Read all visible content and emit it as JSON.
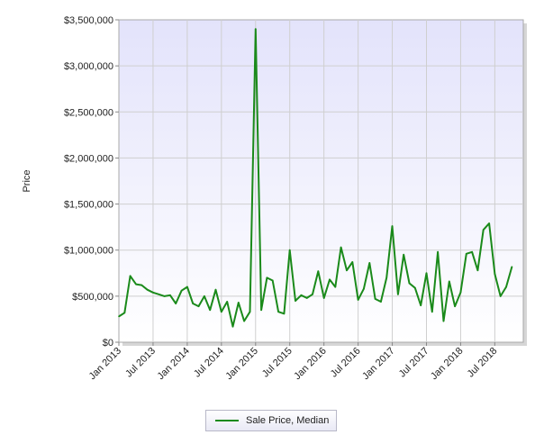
{
  "chart_data": {
    "type": "line",
    "title": "",
    "xlabel": "",
    "ylabel": "Price",
    "ylim": [
      0,
      3500000
    ],
    "yticks": [
      0,
      500000,
      1000000,
      1500000,
      2000000,
      2500000,
      3000000,
      3500000
    ],
    "ytick_labels": [
      "$0",
      "$500,000",
      "$1,000,000",
      "$1,500,000",
      "$2,000,000",
      "$2,500,000",
      "$3,000,000",
      "$3,500,000"
    ],
    "xtick_labels": [
      "Jan 2013",
      "Jul 2013",
      "Jan 2014",
      "Jul 2014",
      "Jan 2015",
      "Jul 2015",
      "Jan 2016",
      "Jul 2016",
      "Jan 2017",
      "Jul 2017",
      "Jan 2018",
      "Jul 2018"
    ],
    "xtick_positions": [
      0,
      6,
      12,
      18,
      24,
      30,
      36,
      42,
      48,
      54,
      60,
      66
    ],
    "x_range": [
      0,
      71
    ],
    "grid": true,
    "legend_position": "bottom",
    "series": [
      {
        "name": "Sale Price, Median",
        "color": "#1a8a1a",
        "values": [
          280000,
          320000,
          720000,
          630000,
          620000,
          570000,
          540000,
          520000,
          500000,
          510000,
          420000,
          560000,
          600000,
          420000,
          390000,
          500000,
          350000,
          570000,
          330000,
          440000,
          170000,
          430000,
          230000,
          330000,
          3400000,
          350000,
          700000,
          670000,
          330000,
          310000,
          1000000,
          450000,
          510000,
          480000,
          520000,
          770000,
          480000,
          680000,
          600000,
          1030000,
          780000,
          870000,
          460000,
          580000,
          860000,
          470000,
          440000,
          700000,
          1260000,
          520000,
          950000,
          640000,
          590000,
          400000,
          750000,
          330000,
          980000,
          230000,
          660000,
          390000,
          540000,
          960000,
          980000,
          780000,
          1220000,
          1290000,
          740000,
          500000,
          600000,
          820000
        ]
      }
    ]
  }
}
